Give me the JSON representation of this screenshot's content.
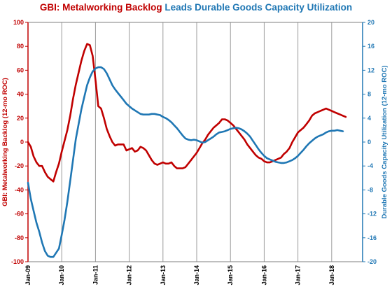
{
  "chart_data": {
    "type": "line",
    "title_parts": [
      {
        "text": "GBI: Metalworking Backlog",
        "color": "#c00000"
      },
      {
        "text": " Leads Durable Goods Capacity Utilization",
        "color": "#1f77b4"
      }
    ],
    "x_tick_labels": [
      "Jan-09",
      "Jan-10",
      "Jan-11",
      "Jan-12",
      "Jan-13",
      "Jan-14",
      "Jan-15",
      "Jan-16",
      "Jan-17",
      "Jan-18"
    ],
    "x_range": [
      "2009-01",
      "2018-12"
    ],
    "ylabel_left": "GBI: Metalworking Backlog (12-mo ROC)",
    "ylabel_right": "Durable Goods Capacity Utilization (12-mo ROC)",
    "ylim_left": [
      -100,
      100
    ],
    "ylim_right": [
      -20,
      20
    ],
    "yticks_left": [
      -100,
      -80,
      -60,
      -40,
      -20,
      0,
      20,
      40,
      60,
      80,
      100
    ],
    "yticks_right": [
      -20,
      -16,
      -12,
      -8,
      -4,
      0,
      4,
      8,
      12,
      16,
      20
    ],
    "grid": "vertical at each year",
    "legend": "none",
    "colors": {
      "backlog": "#c00000",
      "capacity": "#1f77b4",
      "grid": "#9a9a9a",
      "axis_left": "#c00000",
      "axis_right": "#1f77b4"
    },
    "series": [
      {
        "axis": "left",
        "start": "2009-01",
        "interval": "month",
        "values": [
          0,
          -4,
          -12,
          -17,
          -20,
          -20,
          -25,
          -29,
          -31,
          -33,
          -25,
          -18,
          -8,
          1,
          10,
          22,
          36,
          48,
          58,
          68,
          76,
          82,
          81,
          72,
          52,
          30,
          28,
          20,
          11,
          5,
          0,
          -3,
          -2,
          -2,
          -2,
          -7,
          -6,
          -5,
          -8,
          -7,
          -4,
          -5,
          -7,
          -11,
          -15,
          -18,
          -19,
          -18,
          -17,
          -18,
          -18,
          -17,
          -20,
          -22,
          -22,
          -22,
          -21,
          -18,
          -15,
          -12,
          -9,
          -5,
          -1,
          2,
          6,
          9,
          12,
          14,
          16,
          19,
          19,
          18,
          16,
          14,
          11,
          8,
          5,
          2,
          -2,
          -5,
          -8,
          -11,
          -13,
          -14,
          -16,
          -17,
          -17,
          -16,
          -15,
          -14,
          -13,
          -10,
          -8,
          -5,
          0,
          4,
          8,
          10,
          12,
          15,
          18,
          22,
          24,
          25,
          26,
          27,
          28,
          27,
          26,
          25,
          24,
          23,
          22,
          21
        ]
      },
      {
        "axis": "right",
        "start": "2009-01",
        "interval": "month",
        "values": [
          -6.8,
          -9.5,
          -11.5,
          -13.5,
          -15,
          -16.8,
          -18.2,
          -19,
          -19.2,
          -19.2,
          -18.5,
          -17.8,
          -15.5,
          -13,
          -10,
          -6.5,
          -3,
          0.5,
          3,
          5.5,
          7.5,
          9.5,
          10.8,
          11.8,
          12.3,
          12.5,
          12.5,
          12.2,
          11.5,
          10.5,
          9.5,
          8.8,
          8.2,
          7.6,
          7,
          6.4,
          6,
          5.6,
          5.3,
          5,
          4.7,
          4.6,
          4.6,
          4.6,
          4.7,
          4.7,
          4.6,
          4.5,
          4.2,
          4,
          3.7,
          3.3,
          2.8,
          2.3,
          1.7,
          1.1,
          0.6,
          0.4,
          0.3,
          0.4,
          0.3,
          0.1,
          -0.1,
          0,
          0.3,
          0.6,
          0.9,
          1.3,
          1.6,
          1.7,
          1.8,
          2,
          2.2,
          2.3,
          2.4,
          2.3,
          2.1,
          1.8,
          1.4,
          0.9,
          0.2,
          -0.5,
          -1.2,
          -1.8,
          -2.3,
          -2.7,
          -2.9,
          -3.1,
          -3.3,
          -3.4,
          -3.5,
          -3.5,
          -3.4,
          -3.2,
          -3,
          -2.7,
          -2.3,
          -1.8,
          -1.3,
          -0.7,
          -0.2,
          0.2,
          0.6,
          0.9,
          1.1,
          1.3,
          1.6,
          1.8,
          1.9,
          1.9,
          2,
          1.9,
          1.8
        ]
      }
    ]
  }
}
